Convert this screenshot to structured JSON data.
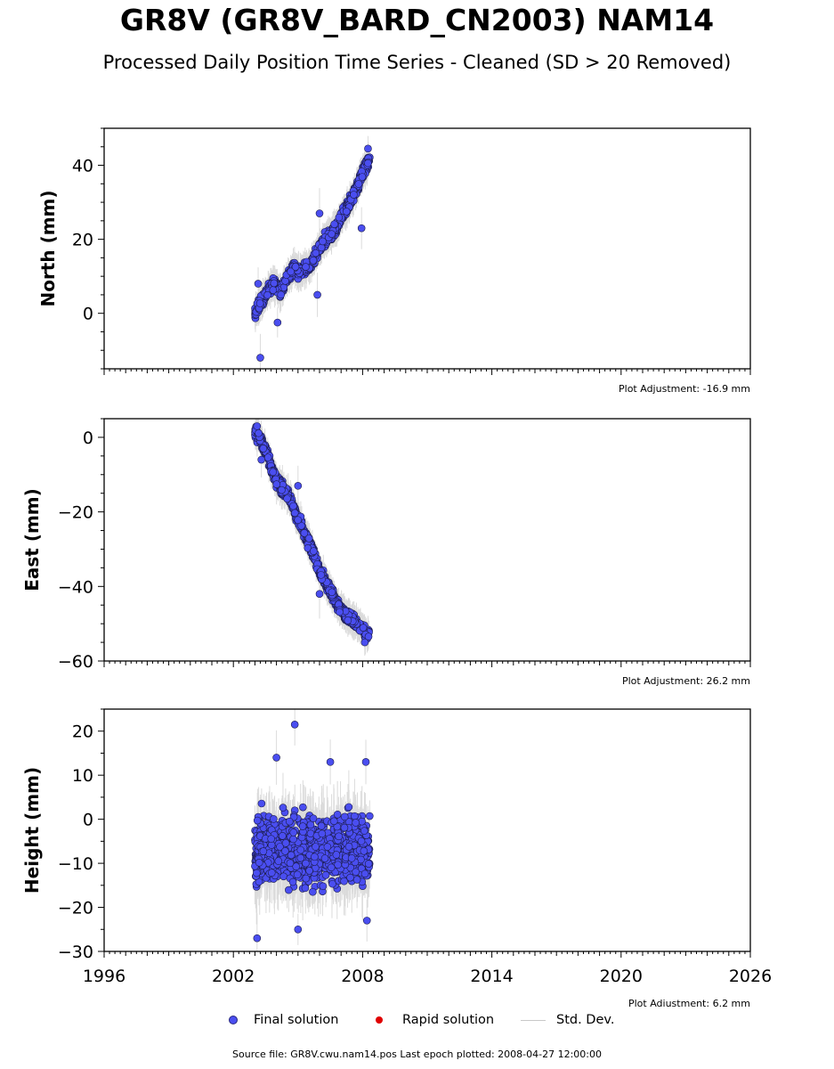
{
  "header": {
    "title": "GR8V (GR8V_BARD_CN2003) NAM14",
    "subtitle": "Processed Daily Position Time Series - Cleaned (SD > 20 Removed)"
  },
  "legend": {
    "final": "Final solution",
    "rapid": "Rapid solution",
    "std": "Std. Dev."
  },
  "footer": {
    "text": "Source file: GR8V.cwu.nam14.pos  Last epoch plotted: 2008-04-27 12:00:00"
  },
  "colors": {
    "final": "#4a4ef0",
    "rapid": "#e00000",
    "std": "#c8c8c8"
  },
  "chart_data": [
    {
      "type": "scatter",
      "ylabel": "North (mm)",
      "adjustment": "Plot Adjustment: -16.9 mm",
      "xlim": [
        1996,
        2026
      ],
      "ylim": [
        -15,
        50
      ],
      "yticks": [
        0,
        20,
        40
      ],
      "xtick_labels_shown": false,
      "series": [
        {
          "name": "Final solution",
          "points": [
            [
              2003.0,
              0.0
            ],
            [
              2003.2,
              2.5
            ],
            [
              2003.4,
              4.0
            ],
            [
              2003.6,
              6.0
            ],
            [
              2003.8,
              8.0
            ],
            [
              2004.0,
              7.5
            ],
            [
              2004.2,
              5.5
            ],
            [
              2004.4,
              8.5
            ],
            [
              2004.6,
              10.0
            ],
            [
              2004.8,
              12.5
            ],
            [
              2005.0,
              11.0
            ],
            [
              2005.2,
              11.5
            ],
            [
              2005.4,
              12.5
            ],
            [
              2005.6,
              13.5
            ],
            [
              2005.8,
              15.5
            ],
            [
              2006.0,
              17.5
            ],
            [
              2006.2,
              19.5
            ],
            [
              2006.4,
              20.5
            ],
            [
              2006.6,
              22.0
            ],
            [
              2006.8,
              23.5
            ],
            [
              2007.0,
              26.0
            ],
            [
              2007.2,
              28.0
            ],
            [
              2007.4,
              30.0
            ],
            [
              2007.6,
              32.5
            ],
            [
              2007.8,
              35.0
            ],
            [
              2008.0,
              38.0
            ],
            [
              2008.2,
              40.0
            ],
            [
              2008.33,
              41.5
            ]
          ],
          "outliers": [
            [
              2003.25,
              -12.0
            ],
            [
              2004.05,
              -2.5
            ],
            [
              2007.95,
              23.0
            ],
            [
              2008.25,
              44.5
            ],
            [
              2003.15,
              8.0
            ],
            [
              2005.9,
              5.0
            ],
            [
              2006.0,
              27.0
            ]
          ]
        }
      ]
    },
    {
      "type": "scatter",
      "ylabel": "East (mm)",
      "adjustment": "Plot Adjustment: 26.2 mm",
      "xlim": [
        1996,
        2026
      ],
      "ylim": [
        -60,
        5
      ],
      "yticks": [
        0,
        -20,
        -40,
        -60
      ],
      "xtick_labels_shown": false,
      "series": [
        {
          "name": "Final solution",
          "points": [
            [
              2003.0,
              1.5
            ],
            [
              2003.2,
              0.0
            ],
            [
              2003.4,
              -2.5
            ],
            [
              2003.6,
              -5.0
            ],
            [
              2003.8,
              -9.0
            ],
            [
              2004.0,
              -11.5
            ],
            [
              2004.2,
              -13.0
            ],
            [
              2004.4,
              -14.5
            ],
            [
              2004.6,
              -16.0
            ],
            [
              2004.8,
              -19.0
            ],
            [
              2005.0,
              -22.0
            ],
            [
              2005.2,
              -24.0
            ],
            [
              2005.4,
              -27.0
            ],
            [
              2005.6,
              -29.5
            ],
            [
              2005.8,
              -32.5
            ],
            [
              2006.0,
              -36.0
            ],
            [
              2006.2,
              -38.0
            ],
            [
              2006.4,
              -40.0
            ],
            [
              2006.6,
              -42.0
            ],
            [
              2006.8,
              -44.5
            ],
            [
              2007.0,
              -46.0
            ],
            [
              2007.2,
              -47.5
            ],
            [
              2007.4,
              -48.5
            ],
            [
              2007.6,
              -49.5
            ],
            [
              2007.8,
              -50.5
            ],
            [
              2008.0,
              -51.5
            ],
            [
              2008.2,
              -53.0
            ],
            [
              2008.33,
              -52.5
            ]
          ],
          "outliers": [
            [
              2003.3,
              -6.0
            ],
            [
              2005.0,
              -13.0
            ],
            [
              2006.0,
              -42.0
            ],
            [
              2008.1,
              -55.0
            ],
            [
              2003.1,
              3.0
            ]
          ]
        }
      ]
    },
    {
      "type": "scatter",
      "ylabel": "Height (mm)",
      "adjustment": "Plot Adjustment: 6.2 mm",
      "xlim": [
        1996,
        2026
      ],
      "ylim": [
        -30,
        25
      ],
      "yticks": [
        20,
        10,
        0,
        -10,
        -20,
        -30
      ],
      "xticks": [
        1996,
        2002,
        2008,
        2014,
        2020,
        2026
      ],
      "xtick_labels_shown": true,
      "series": [
        {
          "name": "Final solution",
          "range": [
            2003.0,
            2008.33
          ],
          "spread": [
            -20,
            8
          ],
          "outliers": [
            [
              2003.1,
              -27.0
            ],
            [
              2004.0,
              14.0
            ],
            [
              2004.85,
              21.5
            ],
            [
              2005.0,
              -25.0
            ],
            [
              2006.5,
              13.0
            ],
            [
              2008.15,
              13.0
            ],
            [
              2008.2,
              -23.0
            ]
          ]
        }
      ]
    }
  ]
}
